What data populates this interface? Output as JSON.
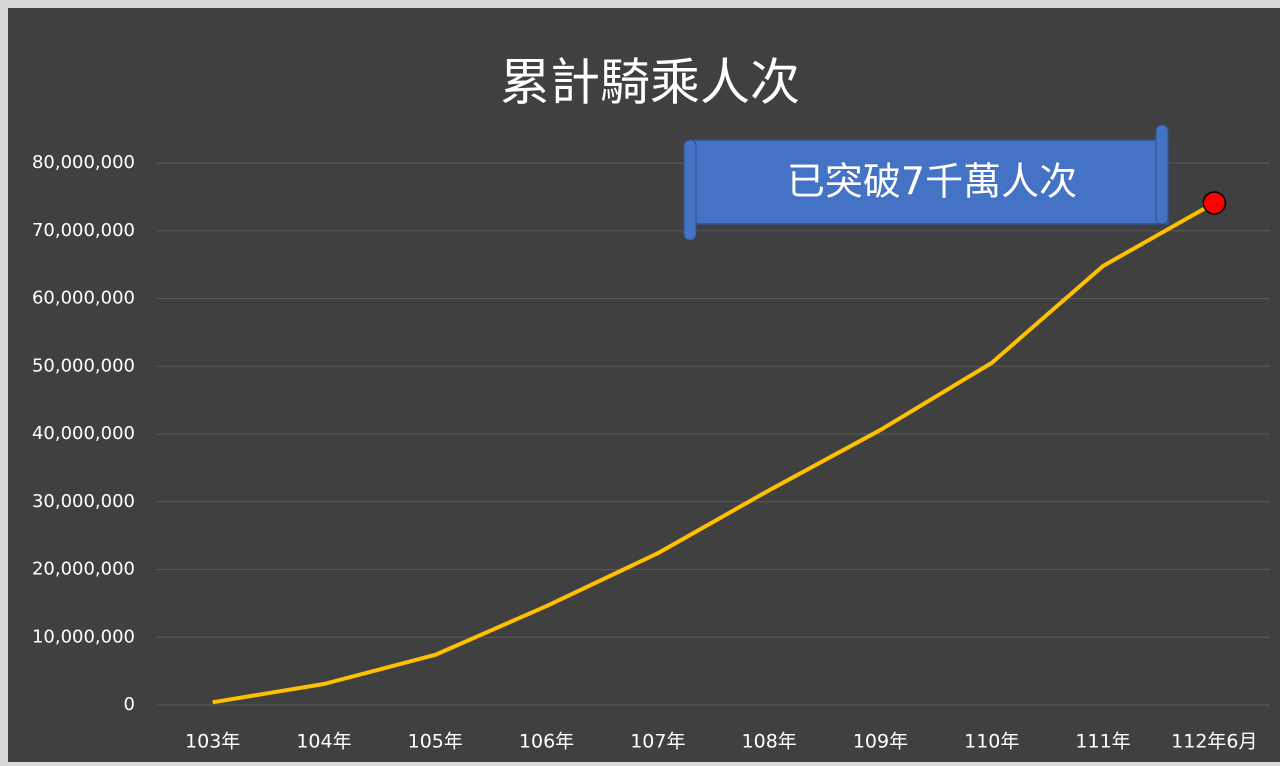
{
  "chart_data": {
    "type": "line",
    "title": "累計騎乘人次",
    "categories": [
      "103年",
      "104年",
      "105年",
      "106年",
      "107年",
      "108年",
      "109年",
      "110年",
      "111年",
      "112年6月"
    ],
    "series": [
      {
        "name": "累計騎乘人次",
        "color": "#ffc000",
        "values": [
          400000,
          3100000,
          7400000,
          14600000,
          22400000,
          31700000,
          40600000,
          50500000,
          64800000,
          74100000
        ]
      }
    ],
    "ylim": [
      0,
      80000000
    ],
    "yticks": [
      0,
      {
        "value": 10000000,
        "label": "10,000,000"
      },
      {
        "value": 20000000,
        "label": "20,000,000"
      },
      {
        "value": 30000000,
        "label": "30,000,000"
      },
      {
        "value": 40000000,
        "label": "40,000,000"
      },
      {
        "value": 50000000,
        "label": "50,000,000"
      },
      {
        "value": 60000000,
        "label": "60,000,000"
      },
      {
        "value": 70000000,
        "label": "70,000,000"
      },
      {
        "value": 80000000,
        "label": "80,000,000"
      }
    ],
    "grid": true,
    "annotation": "已突破7千萬人次",
    "highlight_color": "#ff0000"
  }
}
